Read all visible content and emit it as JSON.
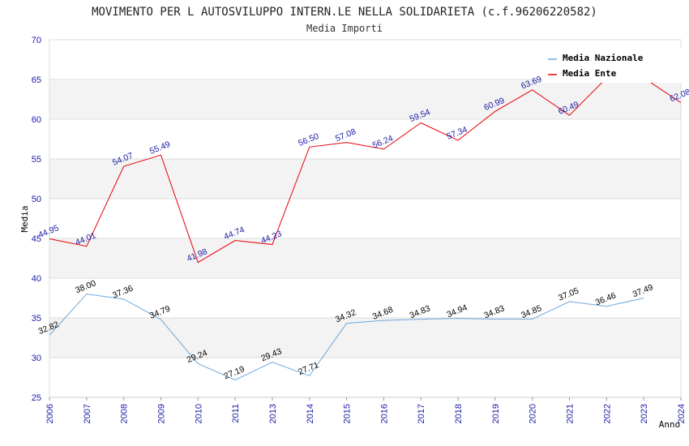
{
  "chart_data": {
    "type": "line",
    "title": "MOVIMENTO PER L AUTOSVILUPPO INTERN.LE NELLA SOLIDARIETA (c.f.96206220582)",
    "subtitle": "Media Importi",
    "xlabel": "Anno",
    "ylabel": "Media",
    "ylim": [
      25,
      70
    ],
    "yticks": [
      25,
      30,
      35,
      40,
      45,
      50,
      55,
      60,
      65,
      70
    ],
    "grid": true,
    "legend_position": "top-right",
    "categories": [
      "2006",
      "2007",
      "2008",
      "2009",
      "2010",
      "2011",
      "2013",
      "2014",
      "2015",
      "2016",
      "2017",
      "2018",
      "2019",
      "2020",
      "2021",
      "2022",
      "2023",
      "2024"
    ],
    "series": [
      {
        "name": "Media Nazionale",
        "color": "#6fa8dc",
        "label_color": "#000000",
        "values": [
          32.82,
          38.0,
          37.36,
          34.79,
          29.24,
          27.19,
          29.43,
          27.71,
          34.32,
          34.68,
          34.83,
          34.94,
          34.83,
          34.85,
          37.05,
          36.46,
          37.49,
          null
        ],
        "labels": [
          "32.82",
          "38.00",
          "37.36",
          "34.79",
          "29.24",
          "27.19",
          "29.43",
          "27.71",
          "34.32",
          "34.68",
          "34.83",
          "34.94",
          "34.83",
          "34.85",
          "37.05",
          "36.46",
          "37.49",
          null
        ]
      },
      {
        "name": "Media Ente",
        "color": "#e8000b",
        "label_color": "#1a1aa6",
        "values": [
          44.95,
          44.01,
          54.07,
          55.49,
          41.98,
          44.74,
          44.23,
          56.5,
          57.08,
          56.24,
          59.54,
          57.34,
          60.99,
          63.69,
          60.49,
          65.2,
          65.2,
          62.08
        ],
        "labels": [
          "44.95",
          "44.01",
          "54.07",
          "55.49",
          "41.98",
          "44.74",
          "44.23",
          "56.50",
          "57.08",
          "56.24",
          "59.54",
          "57.34",
          "60.99",
          "63.69",
          "60.49",
          null,
          null,
          "62.08"
        ]
      }
    ]
  }
}
